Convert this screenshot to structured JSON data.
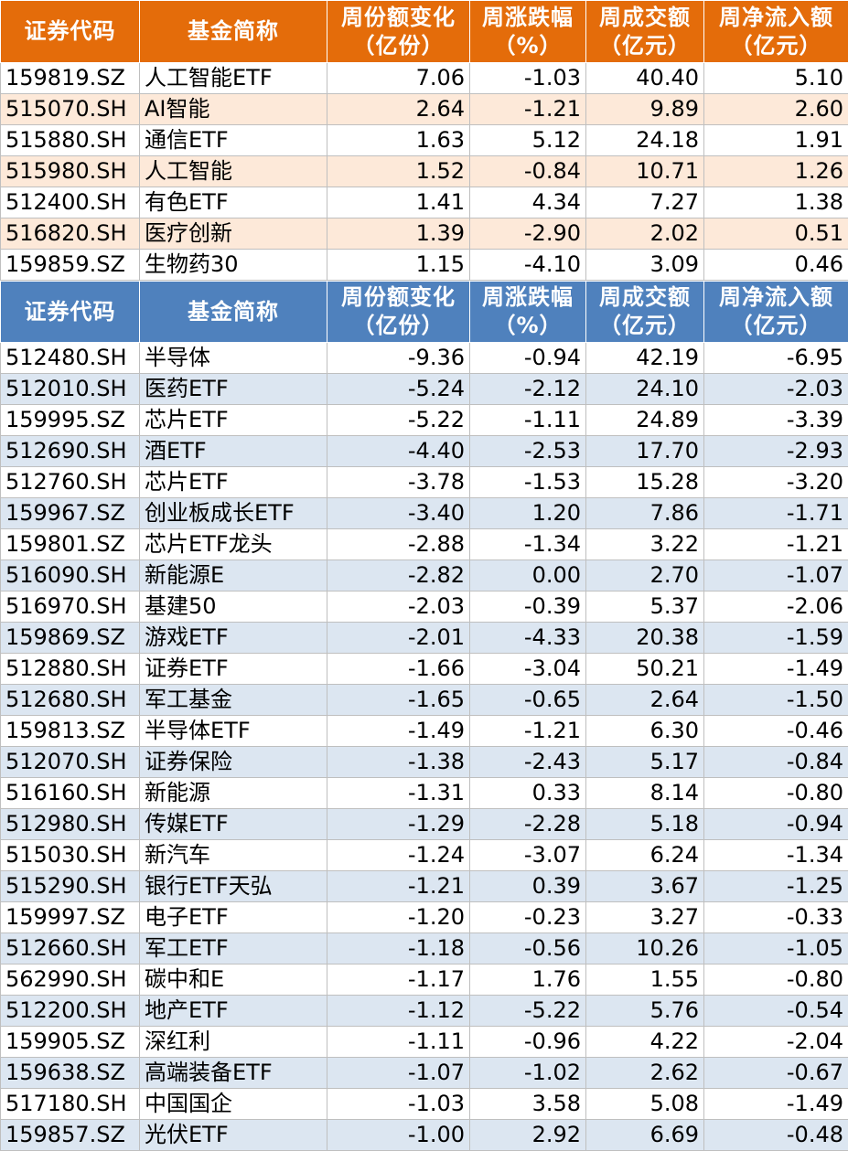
{
  "headers": {
    "code": "证券代码",
    "name": "基金简称",
    "share_change_1": "周份额变化",
    "share_change_2": "（亿份）",
    "weekly_change_1": "周涨跌幅",
    "weekly_change_2": "（%）",
    "turnover_1": "周成交额",
    "turnover_2": "（亿元）",
    "net_inflow_1": "周净流入额",
    "net_inflow_2": "（亿元）"
  },
  "inflow_rows": [
    {
      "code": "159819.SZ",
      "name": "人工智能ETF",
      "share_change": "7.06",
      "weekly_change": "-1.03",
      "turnover": "40.40",
      "net_inflow": "5.10"
    },
    {
      "code": "515070.SH",
      "name": "AI智能",
      "share_change": "2.64",
      "weekly_change": "-1.21",
      "turnover": "9.89",
      "net_inflow": "2.60"
    },
    {
      "code": "515880.SH",
      "name": "通信ETF",
      "share_change": "1.63",
      "weekly_change": "5.12",
      "turnover": "24.18",
      "net_inflow": "1.91"
    },
    {
      "code": "515980.SH",
      "name": "人工智能",
      "share_change": "1.52",
      "weekly_change": "-0.84",
      "turnover": "10.71",
      "net_inflow": "1.26"
    },
    {
      "code": "512400.SH",
      "name": "有色ETF",
      "share_change": "1.41",
      "weekly_change": "4.34",
      "turnover": "7.27",
      "net_inflow": "1.38"
    },
    {
      "code": "516820.SH",
      "name": "医疗创新",
      "share_change": "1.39",
      "weekly_change": "-2.90",
      "turnover": "2.02",
      "net_inflow": "0.51"
    },
    {
      "code": "159859.SZ",
      "name": "生物药30",
      "share_change": "1.15",
      "weekly_change": "-4.10",
      "turnover": "3.09",
      "net_inflow": "0.46"
    }
  ],
  "outflow_rows": [
    {
      "code": "512480.SH",
      "name": "半导体",
      "share_change": "-9.36",
      "weekly_change": "-0.94",
      "turnover": "42.19",
      "net_inflow": "-6.95"
    },
    {
      "code": "512010.SH",
      "name": "医药ETF",
      "share_change": "-5.24",
      "weekly_change": "-2.12",
      "turnover": "24.10",
      "net_inflow": "-2.03"
    },
    {
      "code": "159995.SZ",
      "name": "芯片ETF",
      "share_change": "-5.22",
      "weekly_change": "-1.11",
      "turnover": "24.89",
      "net_inflow": "-3.39"
    },
    {
      "code": "512690.SH",
      "name": "酒ETF",
      "share_change": "-4.40",
      "weekly_change": "-2.53",
      "turnover": "17.70",
      "net_inflow": "-2.93"
    },
    {
      "code": "512760.SH",
      "name": "芯片ETF",
      "share_change": "-3.78",
      "weekly_change": "-1.53",
      "turnover": "15.28",
      "net_inflow": "-3.20"
    },
    {
      "code": "159967.SZ",
      "name": "创业板成长ETF",
      "share_change": "-3.40",
      "weekly_change": "1.20",
      "turnover": "7.86",
      "net_inflow": "-1.71"
    },
    {
      "code": "159801.SZ",
      "name": "芯片ETF龙头",
      "share_change": "-2.88",
      "weekly_change": "-1.34",
      "turnover": "3.22",
      "net_inflow": "-1.21"
    },
    {
      "code": "516090.SH",
      "name": "新能源E",
      "share_change": "-2.82",
      "weekly_change": "0.00",
      "turnover": "2.70",
      "net_inflow": "-1.07"
    },
    {
      "code": "516970.SH",
      "name": "基建50",
      "share_change": "-2.03",
      "weekly_change": "-0.39",
      "turnover": "5.37",
      "net_inflow": "-2.06"
    },
    {
      "code": "159869.SZ",
      "name": "游戏ETF",
      "share_change": "-2.01",
      "weekly_change": "-4.33",
      "turnover": "20.38",
      "net_inflow": "-1.59"
    },
    {
      "code": "512880.SH",
      "name": "证券ETF",
      "share_change": "-1.66",
      "weekly_change": "-3.04",
      "turnover": "50.21",
      "net_inflow": "-1.49"
    },
    {
      "code": "512680.SH",
      "name": "军工基金",
      "share_change": "-1.65",
      "weekly_change": "-0.65",
      "turnover": "2.64",
      "net_inflow": "-1.50"
    },
    {
      "code": "159813.SZ",
      "name": "半导体ETF",
      "share_change": "-1.49",
      "weekly_change": "-1.21",
      "turnover": "6.30",
      "net_inflow": "-0.46"
    },
    {
      "code": "512070.SH",
      "name": "证券保险",
      "share_change": "-1.38",
      "weekly_change": "-2.43",
      "turnover": "5.17",
      "net_inflow": "-0.84"
    },
    {
      "code": "516160.SH",
      "name": "新能源",
      "share_change": "-1.31",
      "weekly_change": "0.33",
      "turnover": "8.14",
      "net_inflow": "-0.80"
    },
    {
      "code": "512980.SH",
      "name": "传媒ETF",
      "share_change": "-1.29",
      "weekly_change": "-2.28",
      "turnover": "5.18",
      "net_inflow": "-0.94"
    },
    {
      "code": "515030.SH",
      "name": "新汽车",
      "share_change": "-1.24",
      "weekly_change": "-3.07",
      "turnover": "6.24",
      "net_inflow": "-1.34"
    },
    {
      "code": "515290.SH",
      "name": "银行ETF天弘",
      "share_change": "-1.21",
      "weekly_change": "0.39",
      "turnover": "3.67",
      "net_inflow": "-1.25"
    },
    {
      "code": "159997.SZ",
      "name": "电子ETF",
      "share_change": "-1.20",
      "weekly_change": "-0.23",
      "turnover": "3.27",
      "net_inflow": "-0.33"
    },
    {
      "code": "512660.SH",
      "name": "军工ETF",
      "share_change": "-1.18",
      "weekly_change": "-0.56",
      "turnover": "10.26",
      "net_inflow": "-1.05"
    },
    {
      "code": "562990.SH",
      "name": "碳中和E",
      "share_change": "-1.17",
      "weekly_change": "1.76",
      "turnover": "1.55",
      "net_inflow": "-0.80"
    },
    {
      "code": "512200.SH",
      "name": "地产ETF",
      "share_change": "-1.12",
      "weekly_change": "-5.22",
      "turnover": "5.76",
      "net_inflow": "-0.54"
    },
    {
      "code": "159905.SZ",
      "name": "深红利",
      "share_change": "-1.11",
      "weekly_change": "-0.96",
      "turnover": "4.22",
      "net_inflow": "-2.04"
    },
    {
      "code": "159638.SZ",
      "name": "高端装备ETF",
      "share_change": "-1.07",
      "weekly_change": "-1.02",
      "turnover": "2.62",
      "net_inflow": "-0.67"
    },
    {
      "code": "517180.SH",
      "name": "中国国企",
      "share_change": "-1.03",
      "weekly_change": "3.58",
      "turnover": "5.08",
      "net_inflow": "-1.49"
    },
    {
      "code": "159857.SZ",
      "name": "光伏ETF",
      "share_change": "-1.00",
      "weekly_change": "2.92",
      "turnover": "6.69",
      "net_inflow": "-0.48"
    }
  ],
  "colors": {
    "inflow_header": "#e46c0a",
    "inflow_stripe": "#fde9d9",
    "outflow_header": "#4f81bd",
    "outflow_stripe": "#dce6f1"
  }
}
